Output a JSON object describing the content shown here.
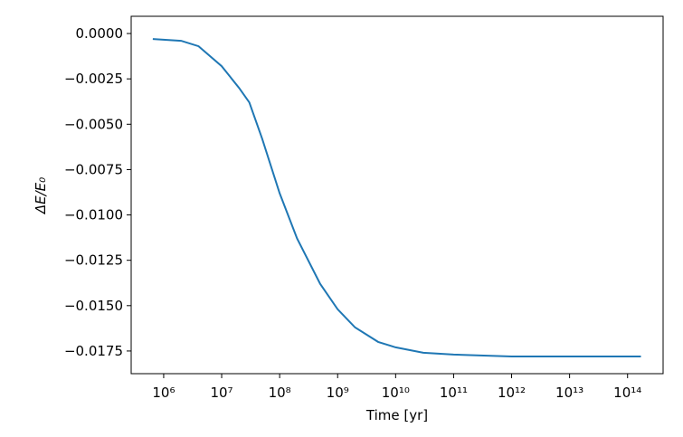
{
  "chart_data": {
    "type": "line",
    "xlabel": "Time [yr]",
    "ylabel": "ΔE/E₀",
    "xscale": "log",
    "xlim": [
      275000,
      410000000000000
    ],
    "ylim": [
      -0.01875,
      0.00095
    ],
    "xticks": [
      {
        "value": 1000000,
        "label": "10⁶"
      },
      {
        "value": 10000000,
        "label": "10⁷"
      },
      {
        "value": 100000000,
        "label": "10⁸"
      },
      {
        "value": 1000000000,
        "label": "10⁹"
      },
      {
        "value": 10000000000,
        "label": "10¹⁰"
      },
      {
        "value": 100000000000,
        "label": "10¹¹"
      },
      {
        "value": 1000000000000,
        "label": "10¹²"
      },
      {
        "value": 10000000000000,
        "label": "10¹³"
      },
      {
        "value": 100000000000000,
        "label": "10¹⁴"
      }
    ],
    "yticks": [
      {
        "value": 0,
        "label": "0.0000"
      },
      {
        "value": -0.0025,
        "label": "−0.0025"
      },
      {
        "value": -0.005,
        "label": "−0.0050"
      },
      {
        "value": -0.0075,
        "label": "−0.0075"
      },
      {
        "value": -0.01,
        "label": "−0.0100"
      },
      {
        "value": -0.0125,
        "label": "−0.0125"
      },
      {
        "value": -0.015,
        "label": "−0.0150"
      },
      {
        "value": -0.0175,
        "label": "−0.0175"
      }
    ],
    "series": [
      {
        "color": "#1f77b4",
        "x": [
          650000,
          2000000,
          4000000,
          10000000,
          20000000,
          30000000,
          50000000,
          100000000,
          200000000,
          500000000,
          1000000000,
          2000000000,
          5000000000,
          10000000000,
          30000000000,
          100000000000,
          1000000000000,
          10000000000000,
          170000000000000
        ],
        "values": [
          -0.0003,
          -0.0004,
          -0.0007,
          -0.0018,
          -0.003,
          -0.0038,
          -0.0058,
          -0.0088,
          -0.0113,
          -0.0138,
          -0.0152,
          -0.0162,
          -0.017,
          -0.0173,
          -0.0176,
          -0.0177,
          -0.0178,
          -0.0178,
          -0.0178
        ]
      }
    ]
  }
}
